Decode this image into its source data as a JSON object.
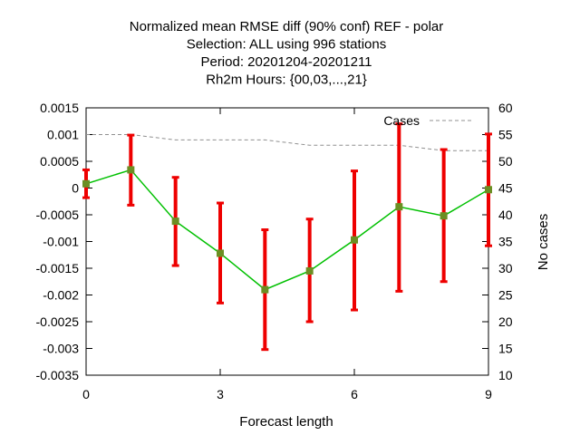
{
  "chart_data": {
    "type": "line",
    "title_lines": [
      "Normalized mean RMSE diff (90% conf) REF - polar",
      "Selection: ALL using   996 stations",
      "Period: 20201204-20201211",
      "Rh2m   Hours: {00,03,...,21}"
    ],
    "xlabel": "Forecast length",
    "ylabel": "",
    "y2label": "No cases",
    "xlim": [
      0,
      9
    ],
    "ylim": [
      -0.0035,
      0.0015
    ],
    "y2lim": [
      10,
      60
    ],
    "x_ticks": [
      0,
      3,
      6,
      9
    ],
    "y_ticks": [
      0.0015,
      0.001,
      0.0005,
      0,
      -0.0005,
      -0.001,
      -0.0015,
      -0.002,
      -0.0025,
      -0.003,
      -0.0035
    ],
    "y_tick_labels": [
      "0.0015",
      "0.001",
      "0.0005",
      "0",
      "-0.0005",
      "-0.001",
      "-0.0015",
      "-0.002",
      "-0.0025",
      "-0.003",
      "-0.0035"
    ],
    "y2_ticks": [
      60,
      55,
      50,
      45,
      40,
      35,
      30,
      25,
      20,
      15,
      10
    ],
    "grid": false,
    "legend": {
      "entries": [
        "Cases"
      ],
      "placement": "top-right"
    },
    "series": [
      {
        "kind": "mean-with-errorbars",
        "color": "#00c000",
        "marker_color": "#6b8e23",
        "errorbar_color": "#ee0000",
        "x": [
          0,
          1,
          2,
          3,
          4,
          5,
          6,
          7,
          8,
          9
        ],
        "y": [
          8e-05,
          0.00034,
          -0.00062,
          -0.00122,
          -0.0019,
          -0.00155,
          -0.00097,
          -0.00035,
          -0.00052,
          -3e-05
        ],
        "low": [
          -0.00018,
          -0.00032,
          -0.00145,
          -0.00215,
          -0.00302,
          -0.0025,
          -0.00228,
          -0.00193,
          -0.00175,
          -0.00108
        ],
        "high": [
          0.00034,
          0.00099,
          0.0002,
          -0.00028,
          -0.00078,
          -0.00058,
          0.00032,
          0.0012,
          0.00072,
          0.00101
        ]
      },
      {
        "name": "Cases",
        "kind": "dashed-line",
        "axis": "y2",
        "color": "#909090",
        "x": [
          0,
          1,
          2,
          3,
          4,
          5,
          6,
          7,
          8,
          9
        ],
        "y": [
          55,
          55,
          54,
          54,
          54,
          53,
          53,
          53,
          52,
          52
        ]
      }
    ]
  }
}
